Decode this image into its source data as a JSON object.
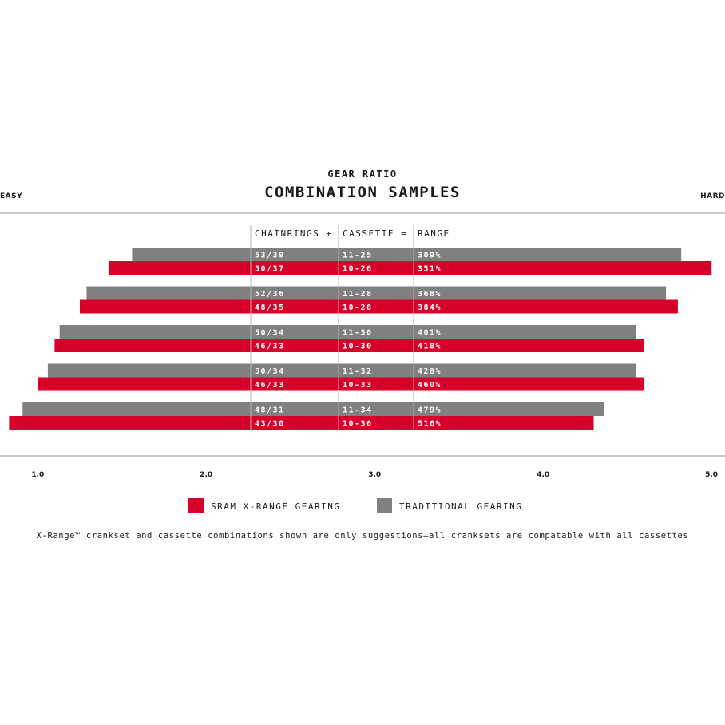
{
  "chart_data": {
    "type": "bar",
    "subtitle": "GEAR RATIO",
    "title": "COMBINATION SAMPLES",
    "left_label": "EASY",
    "right_label": "HARD",
    "columns": {
      "chainrings": "CHAINRINGS +",
      "cassette": "CASSETTE =",
      "range": "RANGE"
    },
    "xlim": [
      0.776,
      5.08
    ],
    "xticks": [
      "1.0",
      "2.0",
      "3.0",
      "4.0",
      "5.0"
    ],
    "tick_values": [
      1.0,
      2.0,
      3.0,
      4.0,
      5.0
    ],
    "colors": {
      "sram": "#d6002a",
      "traditional": "#808080",
      "axis": "#9a9a9a"
    },
    "series": [
      {
        "name": "SRAM X-RANGE GEARING",
        "key": "sram"
      },
      {
        "name": "TRADITIONAL GEARING",
        "key": "traditional"
      }
    ],
    "groups": [
      {
        "traditional": {
          "chainrings": "53/39",
          "cassette": "11-25",
          "range": "309%",
          "min": 1.56,
          "max": 4.82
        },
        "sram": {
          "chainrings": "50/37",
          "cassette": "10-26",
          "range": "351%",
          "min": 1.42,
          "max": 5.0
        }
      },
      {
        "traditional": {
          "chainrings": "52/36",
          "cassette": "11-28",
          "range": "368%",
          "min": 1.29,
          "max": 4.73
        },
        "sram": {
          "chainrings": "48/35",
          "cassette": "10-28",
          "range": "384%",
          "min": 1.25,
          "max": 4.8
        }
      },
      {
        "traditional": {
          "chainrings": "50/34",
          "cassette": "11-30",
          "range": "401%",
          "min": 1.13,
          "max": 4.55
        },
        "sram": {
          "chainrings": "46/33",
          "cassette": "10-30",
          "range": "418%",
          "min": 1.1,
          "max": 4.6
        }
      },
      {
        "traditional": {
          "chainrings": "50/34",
          "cassette": "11-32",
          "range": "428%",
          "min": 1.06,
          "max": 4.55
        },
        "sram": {
          "chainrings": "46/33",
          "cassette": "10-33",
          "range": "460%",
          "min": 1.0,
          "max": 4.6
        }
      },
      {
        "traditional": {
          "chainrings": "48/31",
          "cassette": "11-34",
          "range": "479%",
          "min": 0.91,
          "max": 4.36
        },
        "sram": {
          "chainrings": "43/30",
          "cassette": "10-36",
          "range": "516%",
          "min": 0.83,
          "max": 4.3
        }
      }
    ],
    "footnote": "X-Range™ crankset and cassette combinations shown are only suggestions—all cranksets are compatable with all cassettes"
  }
}
